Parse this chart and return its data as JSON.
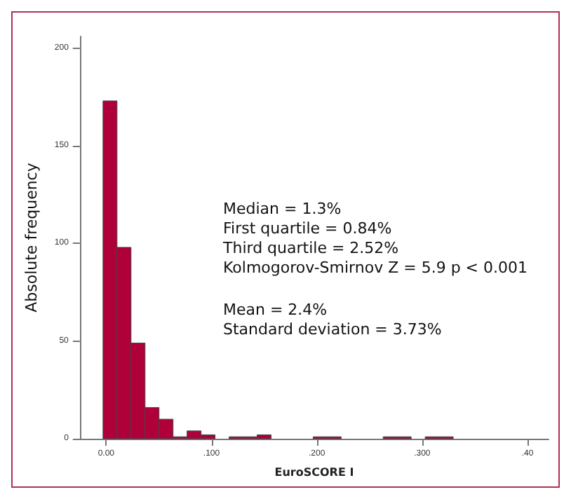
{
  "chart_data": {
    "type": "histogram",
    "xlabel": "EuroSCORE I",
    "ylabel": "Absolute frequency",
    "bins": [
      -0.003,
      0.0103,
      0.0236,
      0.0369,
      0.0502,
      0.0635,
      0.0768,
      0.0901,
      0.1034,
      0.1167,
      0.13,
      0.1433,
      0.1566,
      0.1699,
      0.1832,
      0.1965,
      0.2098,
      0.2231,
      0.2364,
      0.2497,
      0.263,
      0.2763,
      0.2896,
      0.3029,
      0.3162,
      0.3295
    ],
    "values": [
      173,
      98,
      49,
      16,
      10,
      1,
      4,
      2,
      0,
      1,
      1,
      2,
      0,
      0,
      0,
      1,
      1,
      0,
      0,
      0,
      1,
      1,
      0,
      1,
      1
    ],
    "color": "#b0003a",
    "xlim": [
      -0.025,
      0.42
    ],
    "xticks": [
      {
        "value": 0,
        "label": "0.00"
      },
      {
        "value": 0.1,
        "label": ".100"
      },
      {
        "value": 0.2,
        "label": ".200"
      },
      {
        "value": 0.3,
        "label": ".300"
      },
      {
        "value": 0.4,
        "label": ".40"
      }
    ],
    "ylim": [
      0,
      206
    ],
    "yticks": [
      0,
      50,
      100,
      150,
      200
    ],
    "grid": false,
    "annotations": [
      "Median = 1.3%\nFirst quartile = 0.84%\nThird quartile = 2.52%\nKolmogorov-Smirnov Z = 5.9 p < 0.001",
      "Mean = 2.4%\nStandard deviation = 3.73%"
    ]
  }
}
